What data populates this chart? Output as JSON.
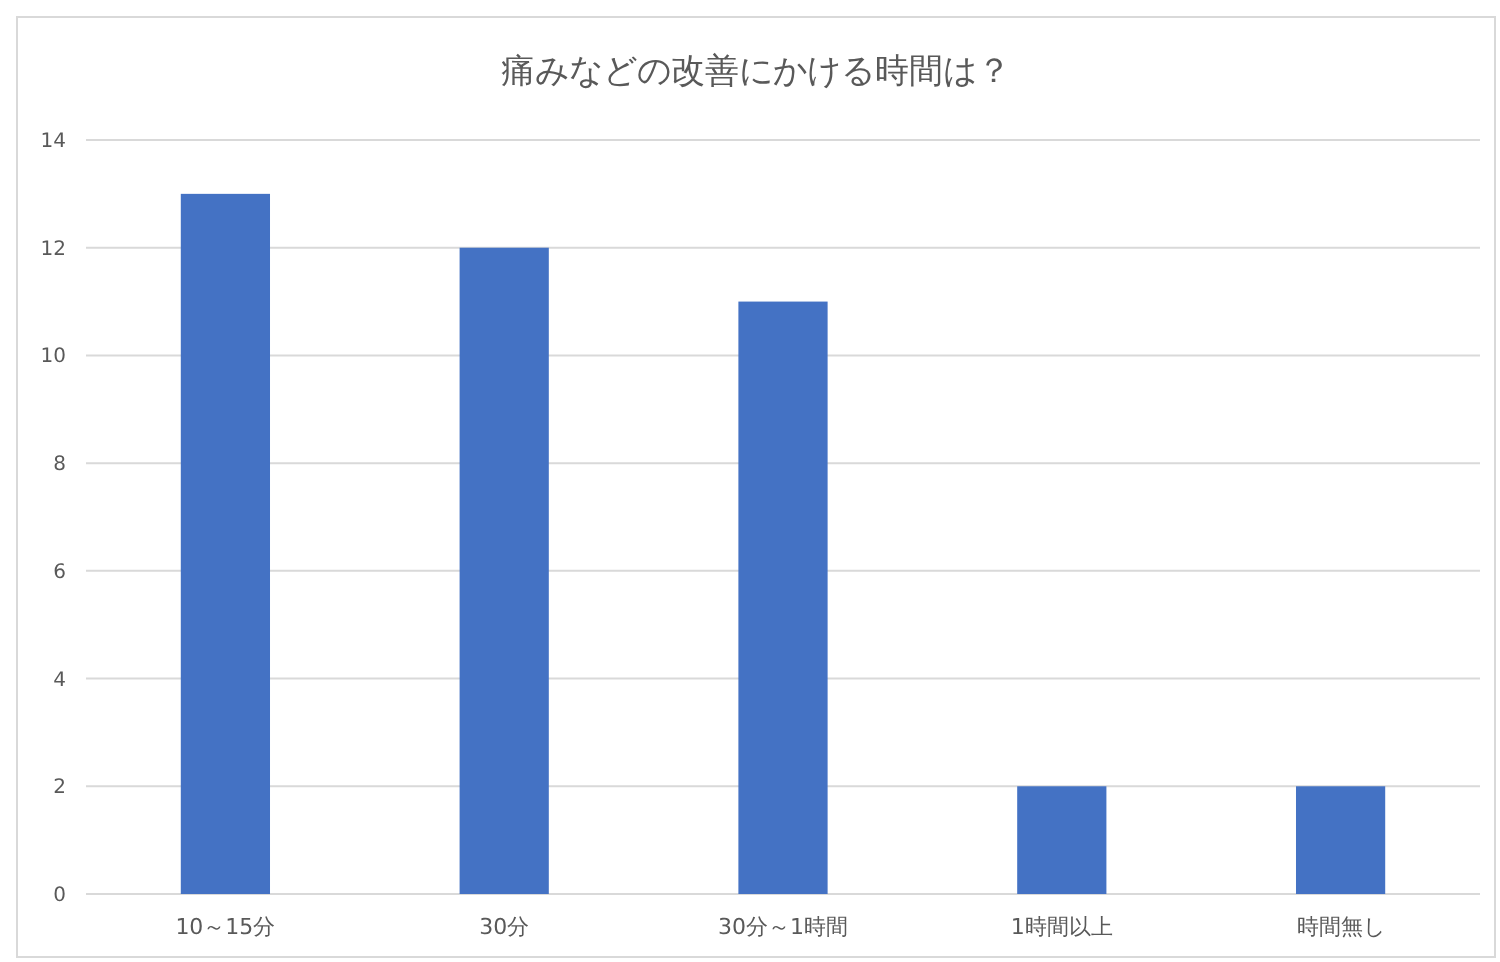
{
  "chart_data": {
    "type": "bar",
    "title": "痛みなどの改善にかける時間は？",
    "categories": [
      "10～15分",
      "30分",
      "30分～1時間",
      "1時間以上",
      "時間無し"
    ],
    "values": [
      13,
      12,
      11,
      2,
      2
    ],
    "color": "#4472c4",
    "ylim": [
      0,
      14
    ],
    "yticks": [
      0,
      2,
      4,
      6,
      8,
      10,
      12,
      14
    ],
    "grid": "y"
  }
}
